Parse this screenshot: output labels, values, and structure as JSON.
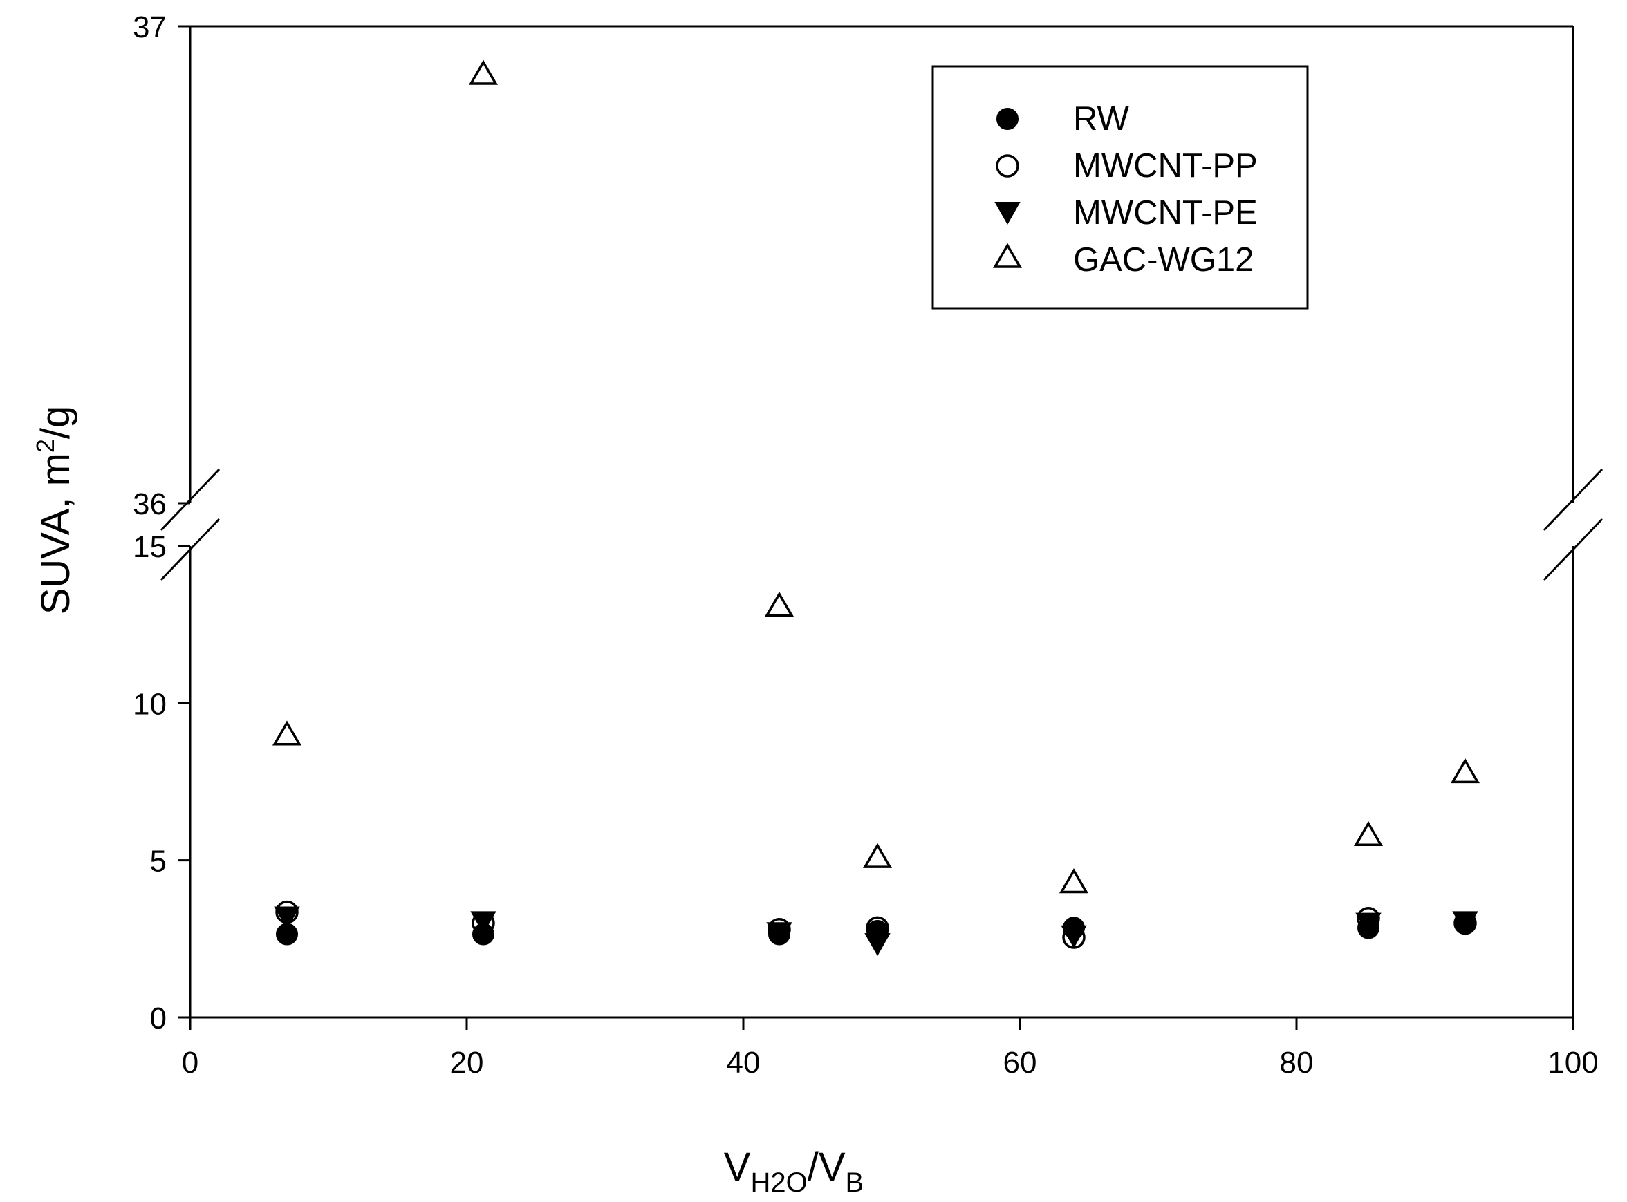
{
  "chart_data": {
    "type": "scatter",
    "title": "",
    "xlabel": {
      "main": "V",
      "sub1": "H2O",
      "slash": "/V",
      "sub2": "B"
    },
    "ylabel": {
      "main": "SUVA, m",
      "sup": "2",
      "tail": "/g"
    },
    "xlim": [
      0,
      100
    ],
    "x_ticks": [
      "0",
      "20",
      "40",
      "60",
      "80",
      "100"
    ],
    "y_axis_break": true,
    "ylim_lower": [
      0,
      15
    ],
    "ylim_upper": [
      36,
      37
    ],
    "y_ticks_lower": [
      "0",
      "5",
      "10",
      "15"
    ],
    "y_ticks_upper": [
      "36",
      "37"
    ],
    "grid": false,
    "legend_position": "top-right",
    "series": [
      {
        "name": "RW",
        "marker": "filled-circle",
        "x": [
          7,
          21.2,
          42.6,
          49.7,
          63.9,
          85.2,
          92.2
        ],
        "y": [
          2.65,
          2.65,
          2.65,
          2.75,
          2.85,
          2.85,
          3.0
        ]
      },
      {
        "name": "MWCNT-PP",
        "marker": "open-circle",
        "x": [
          7,
          21.2,
          42.6,
          49.7,
          63.9,
          85.2,
          92.2
        ],
        "y": [
          3.35,
          3.0,
          2.8,
          2.85,
          2.55,
          3.15,
          3.0
        ]
      },
      {
        "name": "MWCNT-PE",
        "marker": "filled-triangle-down",
        "x": [
          7,
          21.2,
          42.6,
          49.7,
          63.9,
          85.2,
          92.2
        ],
        "y": [
          3.2,
          3.05,
          2.7,
          2.35,
          2.6,
          3.0,
          3.05
        ]
      },
      {
        "name": "GAC-WG12",
        "marker": "open-triangle-up",
        "x": [
          7,
          21.2,
          42.6,
          49.7,
          63.9,
          85.2,
          92.2
        ],
        "y": [
          9.0,
          36.9,
          13.1,
          5.1,
          4.3,
          5.8,
          7.8
        ]
      }
    ]
  }
}
